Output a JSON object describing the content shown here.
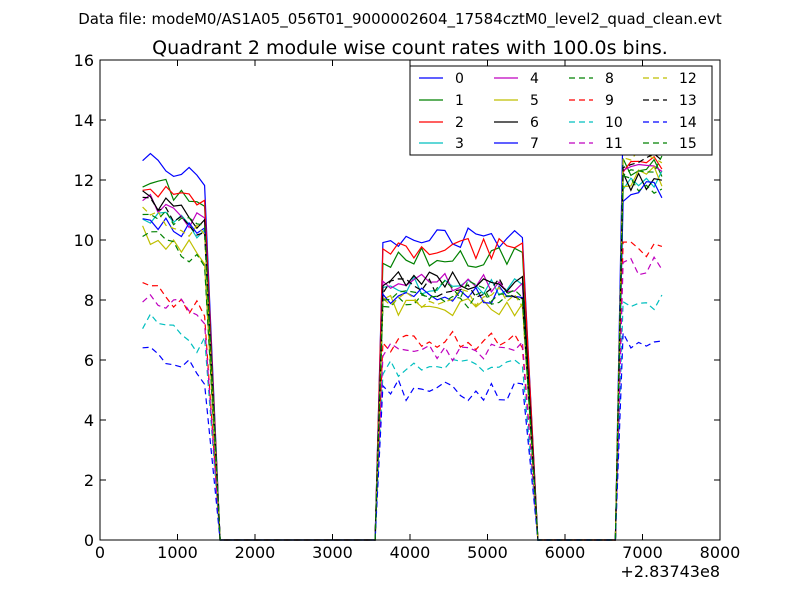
{
  "header": {
    "suptitle": "Data file: modeM0/AS1A05_056T01_9000002604_17584cztM0_level2_quad_clean.evt"
  },
  "chart_data": {
    "type": "line",
    "title": "Quadrant 2 module wise count rates with 100.0s bins.",
    "xlabel": "",
    "ylabel": "",
    "x_offset_label": "+2.83743e8",
    "xlim": [
      0,
      8000
    ],
    "ylim": [
      0,
      16
    ],
    "xticks": [
      0,
      1000,
      2000,
      3000,
      4000,
      5000,
      6000,
      7000,
      8000
    ],
    "xtick_labels": [
      "0",
      "1000",
      "2000",
      "3000",
      "4000",
      "5000",
      "6000",
      "7000",
      "8000"
    ],
    "yticks": [
      0,
      2,
      4,
      6,
      8,
      10,
      12,
      14,
      16
    ],
    "ytick_labels": [
      "0",
      "2",
      "4",
      "6",
      "8",
      "10",
      "12",
      "14",
      "16"
    ],
    "grid": false,
    "legend": {
      "position": "top-right",
      "columns": 4
    },
    "segments": [
      {
        "x_start": 550,
        "x_end": 1350
      },
      {
        "x_start": 3650,
        "x_end": 5450
      },
      {
        "x_start": 6750,
        "x_end": 7250
      }
    ],
    "zero_gaps": [
      {
        "x_from": 1550,
        "x_to": 3550
      },
      {
        "x_from": 5650,
        "x_to": 6650
      }
    ],
    "series": [
      {
        "name": "0",
        "color": "#0000ff",
        "dash": false,
        "levels": [
          12.3,
          10.1,
          13.8
        ]
      },
      {
        "name": "1",
        "color": "#008000",
        "dash": false,
        "levels": [
          11.6,
          9.4,
          12.4
        ]
      },
      {
        "name": "2",
        "color": "#ff0000",
        "dash": false,
        "levels": [
          11.4,
          9.7,
          12.6
        ]
      },
      {
        "name": "3",
        "color": "#00bfbf",
        "dash": false,
        "levels": [
          10.6,
          8.5,
          12.0
        ]
      },
      {
        "name": "4",
        "color": "#bf00bf",
        "dash": false,
        "levels": [
          10.9,
          8.6,
          12.3
        ]
      },
      {
        "name": "5",
        "color": "#bfbf00",
        "dash": false,
        "levels": [
          9.9,
          7.8,
          12.1
        ]
      },
      {
        "name": "6",
        "color": "#000000",
        "dash": false,
        "levels": [
          11.0,
          8.6,
          12.0
        ]
      },
      {
        "name": "7",
        "color": "#0000ff",
        "dash": false,
        "levels": [
          10.5,
          8.2,
          11.6
        ]
      },
      {
        "name": "8",
        "color": "#008000",
        "dash": true,
        "levels": [
          9.8,
          8.0,
          11.8
        ]
      },
      {
        "name": "9",
        "color": "#ff0000",
        "dash": true,
        "levels": [
          8.0,
          6.6,
          9.6
        ]
      },
      {
        "name": "10",
        "color": "#00bfbf",
        "dash": true,
        "levels": [
          6.9,
          5.7,
          8.0
        ]
      },
      {
        "name": "11",
        "color": "#bf00bf",
        "dash": true,
        "levels": [
          7.8,
          6.3,
          9.1
        ]
      },
      {
        "name": "12",
        "color": "#bfbf00",
        "dash": true,
        "levels": [
          10.5,
          8.1,
          12.7
        ]
      },
      {
        "name": "13",
        "color": "#000000",
        "dash": true,
        "levels": [
          10.8,
          8.4,
          12.6
        ]
      },
      {
        "name": "14",
        "color": "#0000ff",
        "dash": true,
        "levels": [
          5.9,
          5.0,
          6.6
        ]
      },
      {
        "name": "15",
        "color": "#008000",
        "dash": true,
        "levels": [
          10.7,
          8.3,
          12.5
        ]
      }
    ]
  }
}
